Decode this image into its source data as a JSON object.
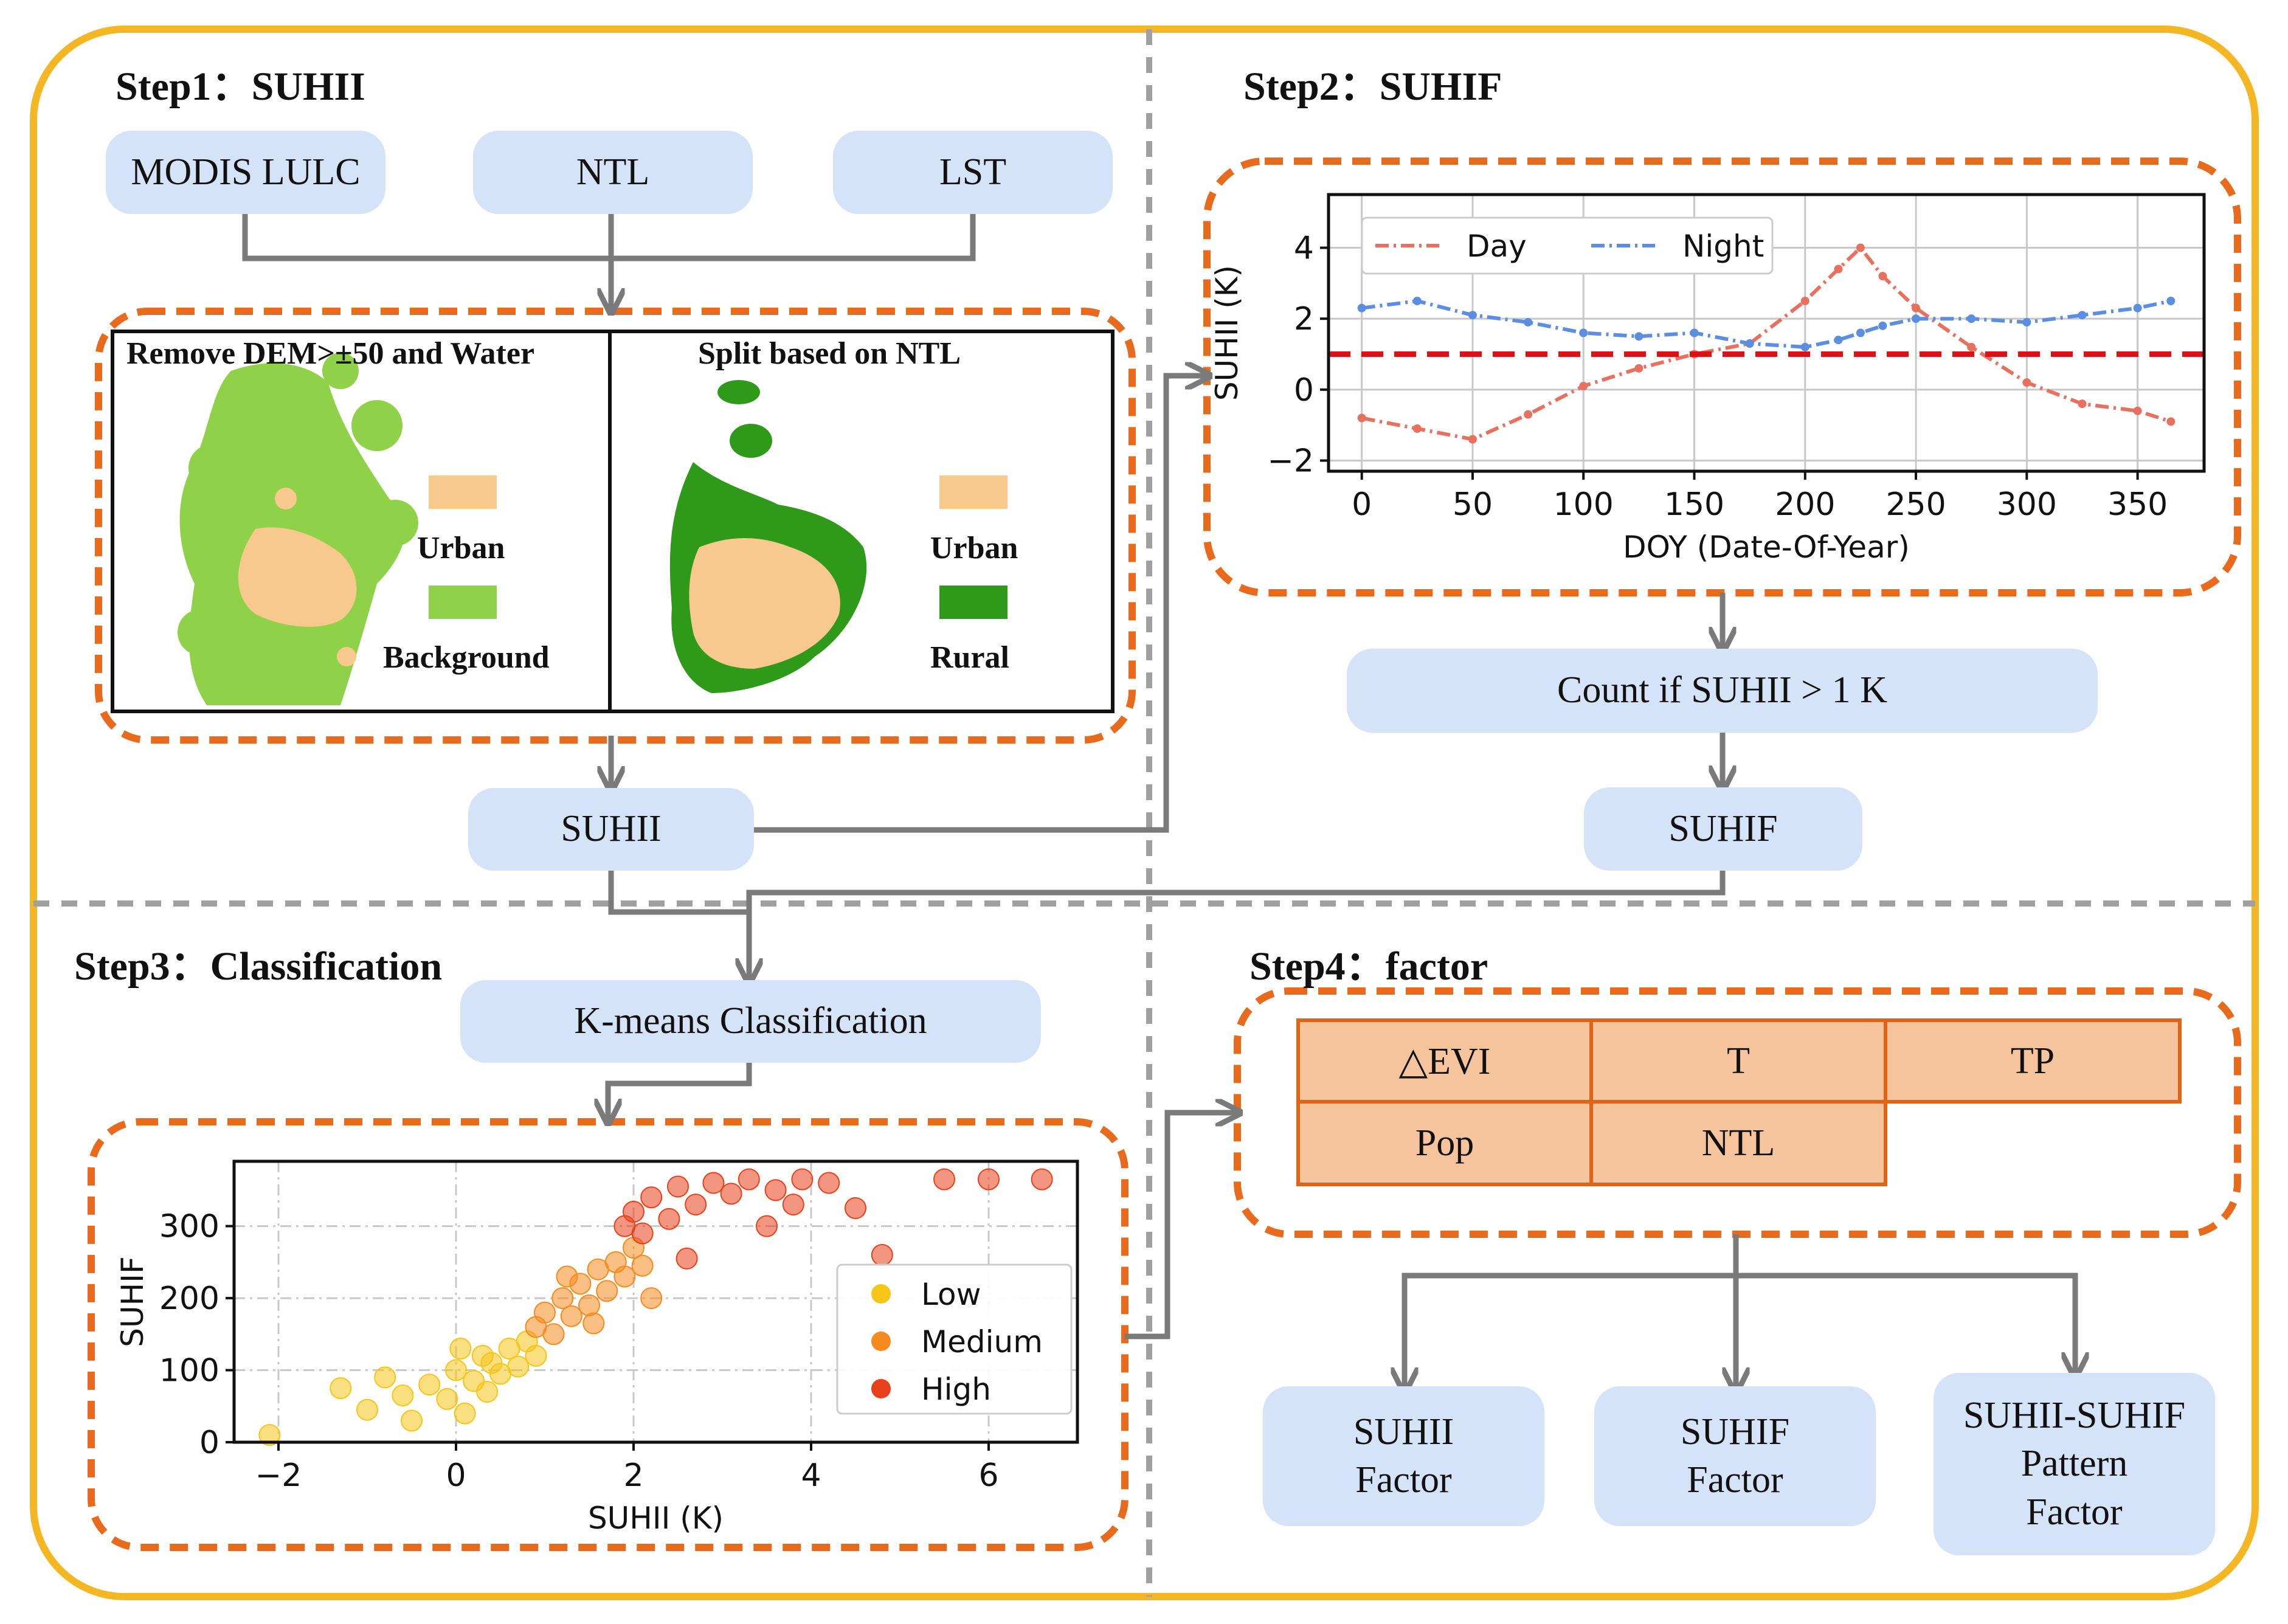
{
  "colors": {
    "frame": "#f5b623",
    "dashed_group": "#e86a1c",
    "box_fill": "#d5e3f8",
    "arrow": "#7a7a7a",
    "urban": "#f7c98c",
    "background_green": "#8fd24a",
    "rural_green": "#2f9a1a",
    "day_line": "#e8705f",
    "night_line": "#5b8ee0",
    "threshold_line": "#dd1111",
    "factor_fill": "#f6c49c",
    "factor_border": "#e06417",
    "low": "#f5c518",
    "medium": "#f58a1e",
    "high": "#e8401a"
  },
  "steps": {
    "step1": "Step1：SUHII",
    "step2": "Step2：SUHIF",
    "step3": "Step3：Classification",
    "step4": "Step4：factor"
  },
  "inputs": {
    "modis": "MODIS LULC",
    "ntl": "NTL",
    "lst": "LST"
  },
  "maps": {
    "left": {
      "title": "Remove DEM>±50 and Water",
      "legend": [
        "Urban",
        "Background"
      ]
    },
    "right": {
      "title": "Split based on NTL",
      "legend": [
        "Urban",
        "Rural"
      ]
    }
  },
  "boxes": {
    "suhii": "SUHII",
    "count": "Count if SUHII > 1 K",
    "suhif": "SUHIF",
    "kmeans": "K-means Classification",
    "out1_line1": "SUHII",
    "out1_line2": "Factor",
    "out2_line1": "SUHIF",
    "out2_line2": "Factor",
    "out3_line1": "SUHII-SUHIF",
    "out3_line2": "Pattern",
    "out3_line3": "Factor"
  },
  "factors": [
    "△EVI",
    "T",
    "TP",
    "Pop",
    "NTL"
  ],
  "chart_data": [
    {
      "type": "line",
      "title": "",
      "xlabel": "DOY (Date-Of-Year)",
      "ylabel": "SUHII (K)",
      "xlim": [
        -15,
        380
      ],
      "ylim": [
        -2.3,
        5.5
      ],
      "xticks": [
        0,
        50,
        100,
        150,
        200,
        250,
        300,
        350
      ],
      "yticks": [
        -2,
        0,
        2,
        4
      ],
      "grid": true,
      "legend_position": "top-left",
      "threshold": 1,
      "x": [
        0,
        25,
        50,
        75,
        100,
        125,
        150,
        175,
        200,
        215,
        225,
        235,
        250,
        275,
        300,
        325,
        350,
        365
      ],
      "series": [
        {
          "name": "Day",
          "values": [
            -0.8,
            -1.1,
            -1.4,
            -0.7,
            0.1,
            0.6,
            1.0,
            1.3,
            2.5,
            3.4,
            4.0,
            3.2,
            2.3,
            1.2,
            0.2,
            -0.4,
            -0.6,
            -0.9
          ]
        },
        {
          "name": "Night",
          "values": [
            2.3,
            2.5,
            2.1,
            1.9,
            1.6,
            1.5,
            1.6,
            1.3,
            1.2,
            1.4,
            1.6,
            1.8,
            2.0,
            2.0,
            1.9,
            2.1,
            2.3,
            2.5
          ]
        }
      ]
    },
    {
      "type": "scatter",
      "title": "",
      "xlabel": "SUHII (K)",
      "ylabel": "SUHIF",
      "xlim": [
        -2.5,
        7
      ],
      "ylim": [
        0,
        390
      ],
      "xticks": [
        -2,
        0,
        2,
        4,
        6
      ],
      "yticks": [
        0,
        100,
        200,
        300
      ],
      "grid": true,
      "legend_position": "center-right",
      "series": [
        {
          "name": "Low",
          "points": [
            [
              -2.1,
              10
            ],
            [
              -1.3,
              75
            ],
            [
              -1.0,
              45
            ],
            [
              -0.8,
              90
            ],
            [
              -0.5,
              30
            ],
            [
              -0.3,
              80
            ],
            [
              -0.1,
              60
            ],
            [
              0.0,
              100
            ],
            [
              0.1,
              40
            ],
            [
              0.2,
              85
            ],
            [
              0.3,
              120
            ],
            [
              0.35,
              70
            ],
            [
              0.4,
              110
            ],
            [
              0.5,
              95
            ],
            [
              0.6,
              130
            ],
            [
              0.7,
              105
            ],
            [
              0.8,
              140
            ],
            [
              0.9,
              120
            ],
            [
              -0.6,
              65
            ],
            [
              0.05,
              130
            ]
          ]
        },
        {
          "name": "Medium",
          "points": [
            [
              0.9,
              160
            ],
            [
              1.0,
              180
            ],
            [
              1.1,
              150
            ],
            [
              1.2,
              200
            ],
            [
              1.3,
              175
            ],
            [
              1.4,
              220
            ],
            [
              1.5,
              190
            ],
            [
              1.6,
              240
            ],
            [
              1.7,
              210
            ],
            [
              1.8,
              250
            ],
            [
              1.9,
              230
            ],
            [
              2.0,
              270
            ],
            [
              2.1,
              245
            ],
            [
              1.25,
              230
            ],
            [
              1.55,
              165
            ],
            [
              2.2,
              200
            ]
          ]
        },
        {
          "name": "High",
          "points": [
            [
              1.9,
              300
            ],
            [
              2.0,
              320
            ],
            [
              2.1,
              290
            ],
            [
              2.2,
              340
            ],
            [
              2.4,
              310
            ],
            [
              2.5,
              355
            ],
            [
              2.7,
              330
            ],
            [
              2.9,
              360
            ],
            [
              3.1,
              345
            ],
            [
              3.3,
              365
            ],
            [
              3.6,
              350
            ],
            [
              3.9,
              365
            ],
            [
              4.2,
              360
            ],
            [
              4.5,
              325
            ],
            [
              4.8,
              260
            ],
            [
              5.5,
              365
            ],
            [
              6.0,
              365
            ],
            [
              6.6,
              365
            ],
            [
              3.5,
              300
            ],
            [
              2.6,
              255
            ],
            [
              3.8,
              330
            ]
          ]
        }
      ]
    }
  ]
}
